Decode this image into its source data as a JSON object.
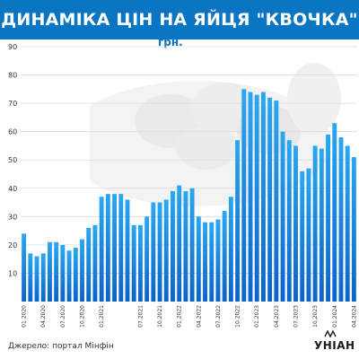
{
  "title": "ДИНАМІКА ЦІН НА ЯЙЦЯ \"КВОЧКА\"",
  "source": "Джерело: портал Мінфін",
  "logo": "УНІАН",
  "colors": {
    "header": "#0a75c2",
    "bar_top": "#2aa8f2",
    "bar_bottom": "#0c63c9",
    "grid": "#dcdcdc",
    "axis_text": "#333333"
  },
  "chart_data": {
    "type": "bar",
    "title": "ДИНАМІКА ЦІН НА ЯЙЦЯ \"КВОЧКА\"",
    "unit": "грн.",
    "ylim": [
      0,
      90
    ],
    "yticks": [
      10,
      20,
      30,
      40,
      50,
      60,
      70,
      80,
      90
    ],
    "grid": true,
    "legend": "none",
    "categories": [
      "01.2020",
      "02.2020",
      "03.2020",
      "04.2020",
      "05.2020",
      "06.2020",
      "07.2020",
      "08.2020",
      "09.2020",
      "10.2020",
      "11.2020",
      "12.2020",
      "01.2021",
      "02.2021",
      "03.2021",
      "04.2021",
      "05.2021",
      "06.2021",
      "07.2021",
      "08.2021",
      "09.2021",
      "10.2021",
      "11.2021",
      "12.2021",
      "01.2022",
      "02.2022",
      "03.2022",
      "04.2022",
      "05.2022",
      "06.2022",
      "07.2022",
      "08.2022",
      "09.2022",
      "10.2022",
      "11.2022",
      "12.2022",
      "01.2023",
      "02.2023",
      "03.2023",
      "04.2023",
      "05.2023",
      "06.2023",
      "07.2023",
      "08.2023",
      "09.2023",
      "10.2023",
      "11.2023",
      "12.2023",
      "01.2024",
      "02.2024",
      "03.2024",
      "04.2024"
    ],
    "values": [
      24,
      17,
      16,
      17,
      21,
      21,
      20,
      18,
      19,
      22,
      26,
      27,
      37,
      38,
      38,
      38,
      36,
      27,
      27,
      30,
      35,
      35,
      36,
      39,
      41,
      39,
      40,
      30,
      28,
      28,
      29,
      32,
      37,
      57,
      75,
      74,
      73,
      74,
      72,
      71,
      60,
      57,
      55,
      46,
      47,
      55,
      54,
      59,
      63,
      58,
      55,
      51
    ],
    "tick_labels": [
      "01.2020",
      "04.2020",
      "07.2020",
      "10.2020",
      "01.2021",
      "07.2021",
      "10.2021",
      "01.2022",
      "04.2022",
      "07.2022",
      "10.2022",
      "01.2023",
      "04.2023",
      "07.2023",
      "10.2023",
      "01.2024",
      "04.2024"
    ],
    "tick_label_index": [
      0,
      3,
      6,
      9,
      12,
      18,
      21,
      24,
      27,
      30,
      33,
      36,
      39,
      42,
      45,
      48,
      51
    ]
  }
}
